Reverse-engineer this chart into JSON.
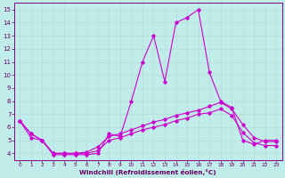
{
  "title": "",
  "xlabel": "Windchill (Refroidissement éolien,°C)",
  "ylabel": "",
  "background_color": "#c0ecea",
  "grid_color": "#aaddda",
  "line_color": "#cc00cc",
  "xlim": [
    -0.5,
    23.5
  ],
  "ylim": [
    3.5,
    15.5
  ],
  "yticks": [
    4,
    5,
    6,
    7,
    8,
    9,
    10,
    11,
    12,
    13,
    14,
    15
  ],
  "xticks": [
    0,
    1,
    2,
    3,
    4,
    5,
    6,
    7,
    8,
    9,
    10,
    11,
    12,
    13,
    14,
    15,
    16,
    17,
    18,
    19,
    20,
    21,
    22,
    23
  ],
  "line1": {
    "x": [
      0,
      1,
      2,
      3,
      4,
      5,
      6,
      7,
      8,
      9,
      10,
      11,
      12,
      13,
      14,
      15,
      16,
      17,
      18,
      19,
      20,
      21,
      22,
      23
    ],
    "y": [
      6.5,
      5.2,
      5.0,
      3.9,
      3.9,
      3.9,
      3.9,
      4.0,
      5.5,
      5.3,
      8.0,
      11.0,
      13.0,
      9.5,
      14.0,
      14.4,
      15.0,
      10.2,
      8.0,
      7.5,
      5.0,
      4.7,
      5.0,
      5.0
    ]
  },
  "line2": {
    "x": [
      0,
      1,
      2,
      3,
      4,
      5,
      6,
      7,
      8,
      9,
      10,
      11,
      12,
      13,
      14,
      15,
      16,
      17,
      18,
      19,
      20,
      21,
      22,
      23
    ],
    "y": [
      6.5,
      5.5,
      5.0,
      4.0,
      4.0,
      4.0,
      4.1,
      4.5,
      5.3,
      5.5,
      5.8,
      6.1,
      6.4,
      6.6,
      6.9,
      7.1,
      7.3,
      7.6,
      7.9,
      7.4,
      6.2,
      5.2,
      4.9,
      4.9
    ]
  },
  "line3": {
    "x": [
      0,
      1,
      2,
      3,
      4,
      5,
      6,
      7,
      8,
      9,
      10,
      11,
      12,
      13,
      14,
      15,
      16,
      17,
      18,
      19,
      20,
      21,
      22,
      23
    ],
    "y": [
      6.5,
      5.5,
      5.0,
      4.0,
      4.0,
      4.0,
      4.0,
      4.2,
      5.0,
      5.2,
      5.5,
      5.8,
      6.0,
      6.2,
      6.5,
      6.7,
      7.0,
      7.1,
      7.4,
      6.9,
      5.6,
      4.8,
      4.6,
      4.6
    ]
  }
}
